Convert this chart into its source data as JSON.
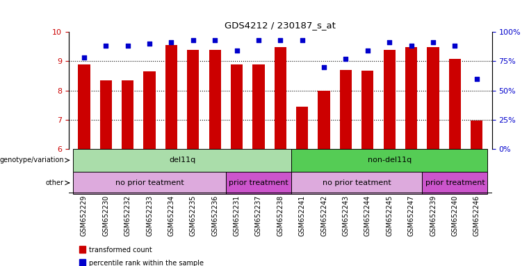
{
  "title": "GDS4212 / 230187_s_at",
  "samples": [
    "GSM652229",
    "GSM652230",
    "GSM652232",
    "GSM652233",
    "GSM652234",
    "GSM652235",
    "GSM652236",
    "GSM652231",
    "GSM652237",
    "GSM652238",
    "GSM652241",
    "GSM652242",
    "GSM652243",
    "GSM652244",
    "GSM652245",
    "GSM652247",
    "GSM652239",
    "GSM652240",
    "GSM652246"
  ],
  "bar_values": [
    8.9,
    8.35,
    8.35,
    8.65,
    9.55,
    9.38,
    9.38,
    8.9,
    8.88,
    9.47,
    7.45,
    7.99,
    8.7,
    8.68,
    9.38,
    9.47,
    9.47,
    9.07,
    6.97
  ],
  "dot_values": [
    78,
    88,
    88,
    90,
    91,
    93,
    93,
    84,
    93,
    93,
    93,
    70,
    77,
    84,
    91,
    88,
    91,
    88,
    60
  ],
  "ylim_left": [
    6,
    10
  ],
  "ylim_right": [
    0,
    100
  ],
  "yticks_left": [
    6,
    7,
    8,
    9,
    10
  ],
  "yticks_right": [
    0,
    25,
    50,
    75,
    100
  ],
  "bar_color": "#cc0000",
  "dot_color": "#0000cc",
  "background_color": "#ffffff",
  "genotype_groups": [
    {
      "label": "del11q",
      "start": 0,
      "end": 10,
      "color": "#aaddaa"
    },
    {
      "label": "non-del11q",
      "start": 10,
      "end": 19,
      "color": "#55cc55"
    }
  ],
  "treatment_groups": [
    {
      "label": "no prior teatment",
      "start": 0,
      "end": 7,
      "color": "#ddaadd"
    },
    {
      "label": "prior treatment",
      "start": 7,
      "end": 10,
      "color": "#cc55cc"
    },
    {
      "label": "no prior teatment",
      "start": 10,
      "end": 16,
      "color": "#ddaadd"
    },
    {
      "label": "prior treatment",
      "start": 16,
      "end": 19,
      "color": "#cc55cc"
    }
  ],
  "genotype_label": "genotype/variation",
  "other_label": "other",
  "legend_items": [
    {
      "label": "transformed count",
      "color": "#cc0000"
    },
    {
      "label": "percentile rank within the sample",
      "color": "#0000cc"
    }
  ],
  "right_axis_label_color": "#0000cc",
  "left_axis_label_color": "#cc0000",
  "bar_width": 0.55
}
